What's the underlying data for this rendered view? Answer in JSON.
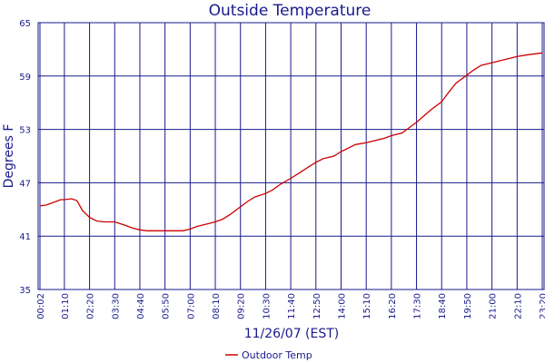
{
  "chart_data": {
    "type": "line",
    "title": "Outside Temperature",
    "xlabel": "11/26/07 (EST)",
    "ylabel": "Degrees F",
    "ylim": [
      35,
      65
    ],
    "y_ticks": [
      "35",
      "41",
      "47",
      "53",
      "59",
      "65"
    ],
    "x_ticks": [
      "00:02",
      "01:10",
      "02:20",
      "03:30",
      "04:40",
      "05:50",
      "07:00",
      "08:10",
      "09:20",
      "10:30",
      "11:40",
      "12:50",
      "14:00",
      "15:10",
      "16:20",
      "17:30",
      "18:40",
      "19:50",
      "21:00",
      "22:10",
      "23:20"
    ],
    "grid": true,
    "legend_position": "bottom-center",
    "colors": {
      "line": "#cc0000",
      "grid": "#1a1a8c",
      "text": "#1a1a8c"
    },
    "series": [
      {
        "name": "Outdoor Temp",
        "x": [
          "00:02",
          "00:20",
          "00:40",
          "01:00",
          "01:10",
          "01:30",
          "01:45",
          "02:00",
          "02:20",
          "02:40",
          "03:00",
          "03:30",
          "04:00",
          "04:20",
          "04:40",
          "05:00",
          "05:20",
          "05:50",
          "06:20",
          "06:40",
          "07:00",
          "07:20",
          "07:40",
          "08:10",
          "08:30",
          "08:50",
          "09:20",
          "09:40",
          "10:00",
          "10:30",
          "10:50",
          "11:10",
          "11:40",
          "12:00",
          "12:30",
          "12:50",
          "13:10",
          "13:40",
          "14:00",
          "14:20",
          "14:40",
          "15:10",
          "15:40",
          "16:00",
          "16:20",
          "16:50",
          "17:10",
          "17:30",
          "17:50",
          "18:10",
          "18:40",
          "19:00",
          "19:20",
          "19:50",
          "20:10",
          "20:30",
          "21:00",
          "21:20",
          "21:40",
          "22:10",
          "22:40",
          "23:00",
          "23:20"
        ],
        "values": [
          44.4,
          44.5,
          44.8,
          45.1,
          45.1,
          45.2,
          45.0,
          43.9,
          43.1,
          42.7,
          42.6,
          42.6,
          42.2,
          41.9,
          41.7,
          41.6,
          41.6,
          41.6,
          41.6,
          41.6,
          41.8,
          42.1,
          42.3,
          42.6,
          42.9,
          43.4,
          44.3,
          44.9,
          45.4,
          45.8,
          46.2,
          46.8,
          47.5,
          48.0,
          48.8,
          49.3,
          49.7,
          50.0,
          50.5,
          50.9,
          51.3,
          51.5,
          51.8,
          52.0,
          52.3,
          52.6,
          53.2,
          53.8,
          54.5,
          55.2,
          56.1,
          57.2,
          58.2,
          59.1,
          59.7,
          60.2,
          60.5,
          60.7,
          60.9,
          61.2,
          61.4,
          61.5,
          61.6
        ]
      }
    ]
  }
}
